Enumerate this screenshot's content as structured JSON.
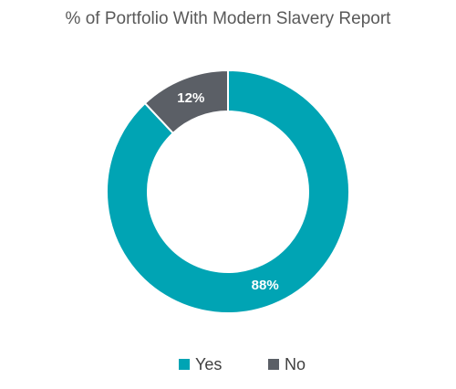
{
  "chart_data": {
    "type": "pie",
    "variant": "donut",
    "title": "% of Portfolio With Modern Slavery Report",
    "categories": [
      "Yes",
      "No"
    ],
    "values": [
      88,
      12
    ],
    "data_labels": [
      "88%",
      "12%"
    ],
    "colors": [
      "#00A4B4",
      "#5B5F66"
    ],
    "legend_position": "bottom"
  }
}
